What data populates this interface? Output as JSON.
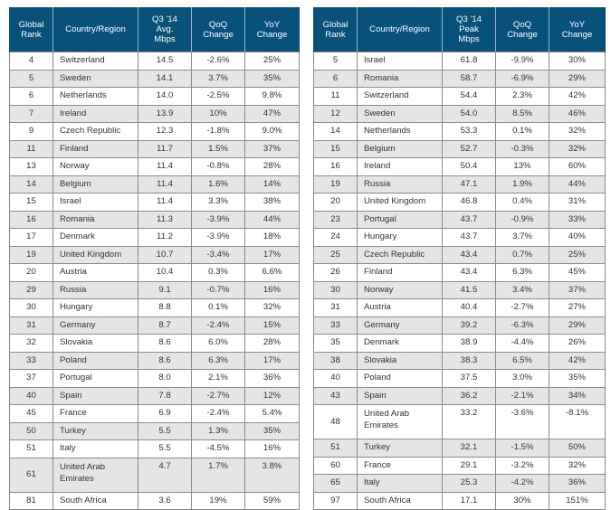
{
  "colors": {
    "header_bg": "#08527a",
    "header_text": "#ffffff",
    "alt_row": "#e4e5e7",
    "border": "#8a8a8a"
  },
  "tables": [
    {
      "headers": [
        "Global Rank",
        "Country/Region",
        "Q3 '14 Avg. Mbps",
        "QoQ Change",
        "YoY Change"
      ],
      "header_lines": [
        [
          "Global",
          "Rank"
        ],
        [
          "Country/Region"
        ],
        [
          "Q3 '14",
          "Avg.",
          "Mbps"
        ],
        [
          "QoQ",
          "Change"
        ],
        [
          "YoY",
          "Change"
        ]
      ],
      "rows": [
        [
          "4",
          "Switzerland",
          "14.5",
          "-2.6%",
          "25%"
        ],
        [
          "5",
          "Sweden",
          "14.1",
          "3.7%",
          "35%"
        ],
        [
          "6",
          "Netherlands",
          "14.0",
          "-2.5%",
          "9.8%"
        ],
        [
          "7",
          "Ireland",
          "13.9",
          "10%",
          "47%"
        ],
        [
          "9",
          "Czech Republic",
          "12.3",
          "-1.8%",
          "9.0%"
        ],
        [
          "11",
          "Finland",
          "11.7",
          "1.5%",
          "37%"
        ],
        [
          "13",
          "Norway",
          "11.4",
          "-0.8%",
          "28%"
        ],
        [
          "14",
          "Belgium",
          "11.4",
          "1.6%",
          "14%"
        ],
        [
          "15",
          "Israel",
          "11.4",
          "3.3%",
          "38%"
        ],
        [
          "16",
          "Romania",
          "11.3",
          "-3.9%",
          "44%"
        ],
        [
          "17",
          "Denmark",
          "11.2",
          "-3.9%",
          "18%"
        ],
        [
          "19",
          "United Kingdom",
          "10.7",
          "-3.4%",
          "17%"
        ],
        [
          "20",
          "Austria",
          "10.4",
          "0.3%",
          "6.6%"
        ],
        [
          "29",
          "Russia",
          "9.1",
          "-0.7%",
          "16%"
        ],
        [
          "30",
          "Hungary",
          "8.8",
          "0.1%",
          "32%"
        ],
        [
          "31",
          "Germany",
          "8.7",
          "-2.4%",
          "15%"
        ],
        [
          "32",
          "Slovakia",
          "8.6",
          "6.0%",
          "28%"
        ],
        [
          "33",
          "Poland",
          "8.6",
          "6.3%",
          "17%"
        ],
        [
          "37",
          "Portugal",
          "8.0",
          "2.1%",
          "36%"
        ],
        [
          "40",
          "Spain",
          "7.8",
          "-2.7%",
          "12%"
        ],
        [
          "45",
          "France",
          "6.9",
          "-2.4%",
          "5.4%"
        ],
        [
          "50",
          "Turkey",
          "5.5",
          "1.3%",
          "35%"
        ],
        [
          "51",
          "Italy",
          "5.5",
          "-4.5%",
          "16%"
        ],
        [
          "61",
          "United Arab Emirates",
          "4.7",
          "1.7%",
          "3.8%"
        ],
        [
          "81",
          "South Africa",
          "3.6",
          "19%",
          "59%"
        ]
      ]
    },
    {
      "headers": [
        "Global Rank",
        "Country/Region",
        "Q3 '14 Peak Mbps",
        "QoQ Change",
        "YoY Change"
      ],
      "header_lines": [
        [
          "Global",
          "Rank"
        ],
        [
          "Country/Region"
        ],
        [
          "Q3 '14",
          "Peak",
          "Mbps"
        ],
        [
          "QoQ",
          "Change"
        ],
        [
          "YoY",
          "Change"
        ]
      ],
      "rows": [
        [
          "5",
          "Israel",
          "61.8",
          "-9.9%",
          "30%"
        ],
        [
          "6",
          "Romania",
          "58.7",
          "-6.9%",
          "29%"
        ],
        [
          "11",
          "Switzerland",
          "54.4",
          "2.3%",
          "42%"
        ],
        [
          "12",
          "Sweden",
          "54.0",
          "8.5%",
          "46%"
        ],
        [
          "14",
          "Netherlands",
          "53.3",
          "0.1%",
          "32%"
        ],
        [
          "15",
          "Belgium",
          "52.7",
          "-0.3%",
          "32%"
        ],
        [
          "16",
          "Ireland",
          "50.4",
          "13%",
          "60%"
        ],
        [
          "19",
          "Russia",
          "47.1",
          "1.9%",
          "44%"
        ],
        [
          "20",
          "United Kingdom",
          "46.8",
          "0.4%",
          "31%"
        ],
        [
          "23",
          "Portugal",
          "43.7",
          "-0.9%",
          "33%"
        ],
        [
          "24",
          "Hungary",
          "43.7",
          "3.7%",
          "40%"
        ],
        [
          "25",
          "Czech Republic",
          "43.4",
          "0.7%",
          "25%"
        ],
        [
          "26",
          "Finland",
          "43.4",
          "6.3%",
          "45%"
        ],
        [
          "30",
          "Norway",
          "41.5",
          "3.4%",
          "37%"
        ],
        [
          "31",
          "Austria",
          "40.4",
          "-2.7%",
          "27%"
        ],
        [
          "33",
          "Germany",
          "39.2",
          "-6.3%",
          "29%"
        ],
        [
          "35",
          "Denmark",
          "38.9",
          "-4.4%",
          "26%"
        ],
        [
          "38",
          "Slovakia",
          "38.3",
          "6.5%",
          "42%"
        ],
        [
          "40",
          "Poland",
          "37.5",
          "3.0%",
          "35%"
        ],
        [
          "43",
          "Spain",
          "36.2",
          "-2.1%",
          "34%"
        ],
        [
          "48",
          "United Arab Emirates",
          "33.2",
          "-3.6%",
          "-8.1%"
        ],
        [
          "51",
          "Turkey",
          "32.1",
          "-1.5%",
          "50%"
        ],
        [
          "60",
          "France",
          "29.1",
          "-3.2%",
          "32%"
        ],
        [
          "65",
          "Italy",
          "25.3",
          "-4.2%",
          "36%"
        ],
        [
          "97",
          "South Africa",
          "17.1",
          "30%",
          "151%"
        ]
      ]
    }
  ]
}
